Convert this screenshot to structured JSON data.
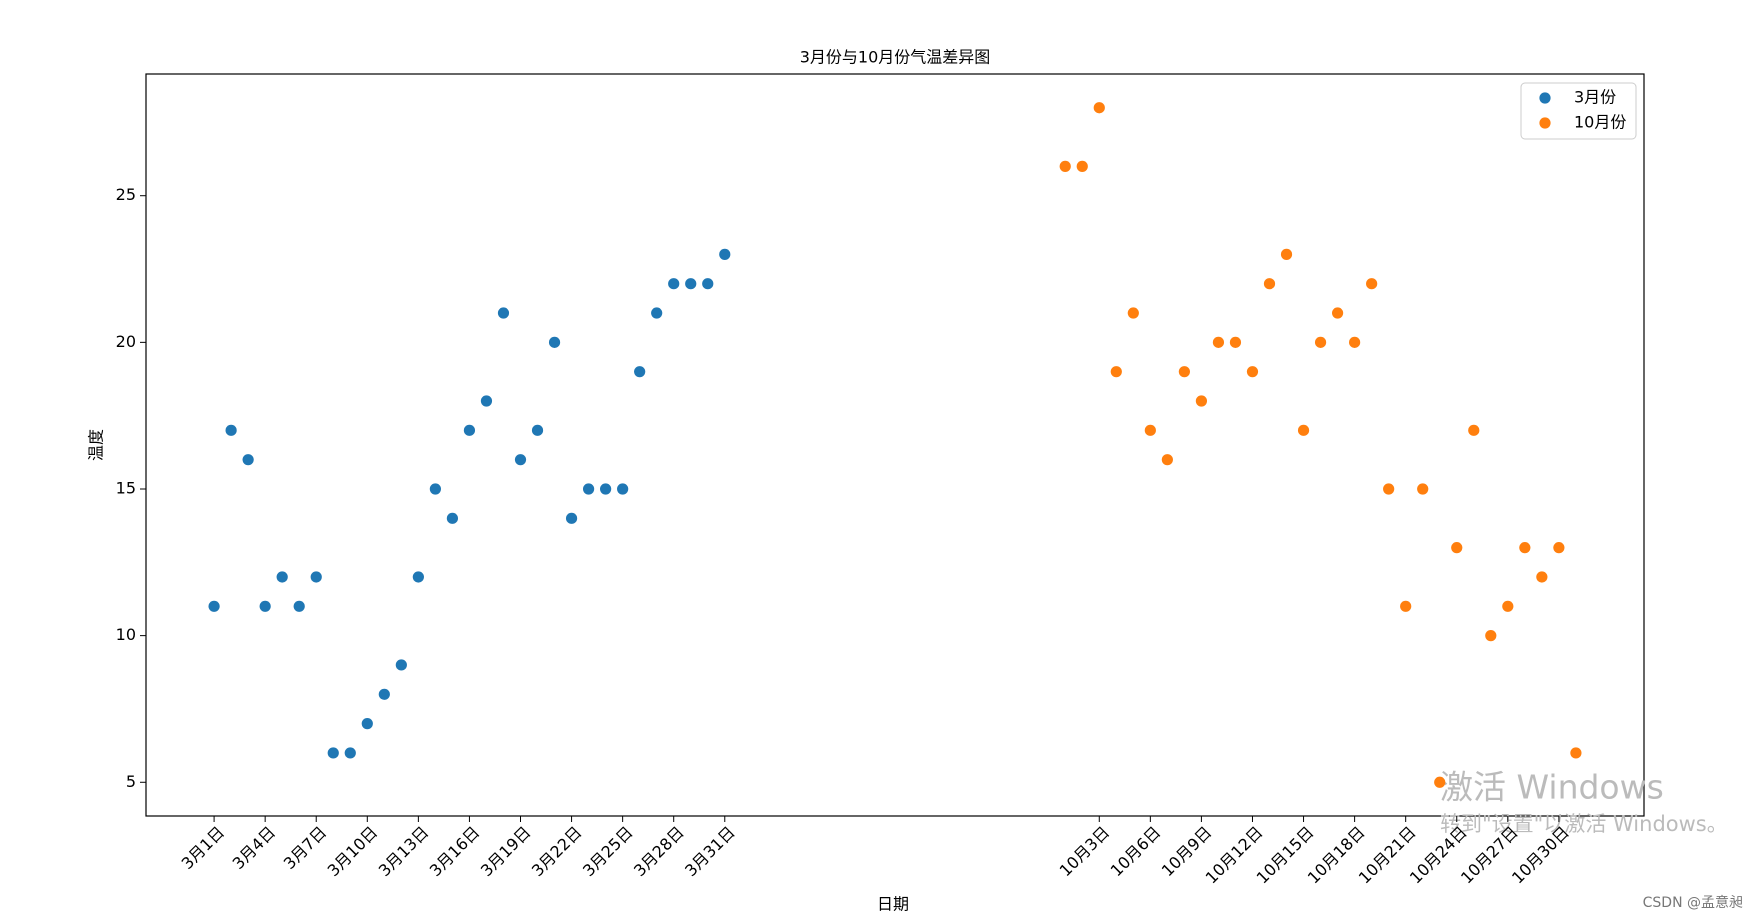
{
  "chart_data": {
    "type": "scatter",
    "title": "3月份与10月份气温差异图",
    "x_label": "日期",
    "y_label": "温度",
    "xlim": [
      -3,
      85
    ],
    "ylim": [
      3.85,
      29.15
    ],
    "xticks": [
      {
        "value": 1,
        "label": "3月1日"
      },
      {
        "value": 4,
        "label": "3月4日"
      },
      {
        "value": 7,
        "label": "3月7日"
      },
      {
        "value": 10,
        "label": "3月10日"
      },
      {
        "value": 13,
        "label": "3月13日"
      },
      {
        "value": 16,
        "label": "3月16日"
      },
      {
        "value": 19,
        "label": "3月19日"
      },
      {
        "value": 22,
        "label": "3月22日"
      },
      {
        "value": 25,
        "label": "3月25日"
      },
      {
        "value": 28,
        "label": "3月28日"
      },
      {
        "value": 31,
        "label": "3月31日"
      },
      {
        "value": 53,
        "label": "10月3日"
      },
      {
        "value": 56,
        "label": "10月6日"
      },
      {
        "value": 59,
        "label": "10月9日"
      },
      {
        "value": 62,
        "label": "10月12日"
      },
      {
        "value": 65,
        "label": "10月15日"
      },
      {
        "value": 68,
        "label": "10月18日"
      },
      {
        "value": 71,
        "label": "10月21日"
      },
      {
        "value": 74,
        "label": "10月24日"
      },
      {
        "value": 77,
        "label": "10月27日"
      },
      {
        "value": 80,
        "label": "10月30日"
      }
    ],
    "yticks": [
      5,
      10,
      15,
      20,
      25
    ],
    "grid": false,
    "legend": "upper right",
    "series": [
      {
        "name": "3月份",
        "color": "#1f77b4",
        "x": [
          1,
          2,
          3,
          4,
          5,
          6,
          7,
          8,
          9,
          10,
          11,
          12,
          13,
          14,
          15,
          16,
          17,
          18,
          19,
          20,
          21,
          22,
          23,
          24,
          25,
          26,
          27,
          28,
          29,
          30,
          31
        ],
        "values": [
          11,
          17,
          16,
          11,
          12,
          11,
          12,
          6,
          6,
          7,
          8,
          9,
          12,
          15,
          14,
          17,
          18,
          21,
          16,
          17,
          20,
          14,
          15,
          15,
          15,
          19,
          21,
          22,
          22,
          22,
          23
        ]
      },
      {
        "name": "10月份",
        "color": "#ff7f0e",
        "x": [
          51,
          52,
          53,
          54,
          55,
          56,
          57,
          58,
          59,
          60,
          61,
          62,
          63,
          64,
          65,
          66,
          67,
          68,
          69,
          70,
          71,
          72,
          73,
          74,
          75,
          76,
          77,
          78,
          79,
          80,
          81
        ],
        "values": [
          26,
          26,
          28,
          19,
          21,
          17,
          16,
          19,
          18,
          20,
          20,
          19,
          22,
          23,
          17,
          20,
          21,
          20,
          22,
          15,
          11,
          15,
          5,
          13,
          17,
          10,
          11,
          13,
          12,
          13,
          6
        ]
      }
    ]
  },
  "overlay": {
    "activate_title": "激活 Windows",
    "activate_hint": "转到\"设置\"以激活 Windows。",
    "credit": "CSDN @孟意昶"
  }
}
